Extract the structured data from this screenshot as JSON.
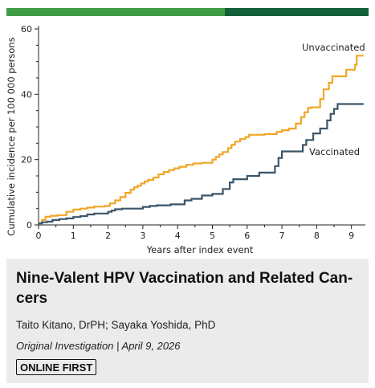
{
  "colors": {
    "bar_light_green": "#3e9c45",
    "bar_dark_green": "#12603a",
    "unvaccinated": "#f0a628",
    "vaccinated": "#3b5568",
    "card_bg": "#ebebeb"
  },
  "chart_data": {
    "type": "line",
    "subtype": "step",
    "xlabel": "Years after index event",
    "ylabel": "Cumulative incidence per 100 000 persons",
    "xlim": [
      0,
      9.4
    ],
    "ylim": [
      0,
      60
    ],
    "xticks": [
      0,
      1,
      2,
      3,
      4,
      5,
      6,
      7,
      8,
      9
    ],
    "yticks": [
      0,
      20,
      40,
      60
    ],
    "grid": false,
    "series": [
      {
        "name": "Unvaccinated",
        "color": "#f0a628",
        "x": [
          0,
          0.1,
          0.2,
          0.35,
          0.55,
          0.8,
          1.0,
          1.2,
          1.4,
          1.6,
          1.9,
          2.05,
          2.2,
          2.35,
          2.5,
          2.65,
          2.75,
          2.85,
          2.95,
          3.05,
          3.15,
          3.3,
          3.45,
          3.6,
          3.75,
          3.9,
          4.05,
          4.25,
          4.45,
          4.7,
          5.0,
          5.1,
          5.2,
          5.3,
          5.45,
          5.55,
          5.65,
          5.8,
          5.95,
          6.05,
          6.5,
          6.85,
          7.0,
          7.2,
          7.4,
          7.55,
          7.65,
          7.75,
          7.85,
          8.1,
          8.2,
          8.35,
          8.45,
          8.6,
          8.85,
          9.1,
          9.15,
          9.35
        ],
        "y": [
          0.5,
          1.5,
          2.5,
          2.8,
          3.0,
          4.0,
          4.7,
          5.0,
          5.3,
          5.6,
          5.8,
          6.6,
          7.5,
          8.5,
          9.8,
          10.8,
          11.5,
          12.0,
          12.7,
          13.3,
          13.8,
          14.5,
          15.5,
          16.2,
          16.8,
          17.3,
          17.8,
          18.4,
          18.8,
          19.0,
          20.0,
          20.8,
          21.6,
          22.3,
          23.5,
          24.5,
          25.5,
          26.3,
          26.9,
          27.6,
          27.8,
          28.5,
          29.0,
          29.5,
          31.0,
          33.0,
          34.5,
          35.8,
          36.0,
          38.5,
          41.5,
          43.5,
          45.5,
          45.5,
          47.5,
          49.0,
          51.8,
          51.8
        ]
      },
      {
        "name": "Vaccinated",
        "color": "#3b5568",
        "x": [
          0,
          0.1,
          0.25,
          0.4,
          0.6,
          0.8,
          1.0,
          1.2,
          1.4,
          1.6,
          2.0,
          2.1,
          2.2,
          2.4,
          3.0,
          3.2,
          3.4,
          3.8,
          4.2,
          4.4,
          4.7,
          5.0,
          5.3,
          5.5,
          5.6,
          6.0,
          6.35,
          6.8,
          6.9,
          7.0,
          7.6,
          7.7,
          7.9,
          8.1,
          8.3,
          8.4,
          8.5,
          8.6,
          9.35
        ],
        "y": [
          0.5,
          0.8,
          1.0,
          1.5,
          1.8,
          2.0,
          2.4,
          2.7,
          3.2,
          3.5,
          4.0,
          4.4,
          4.8,
          5.0,
          5.5,
          5.8,
          6.0,
          6.3,
          7.5,
          8.0,
          9.0,
          9.5,
          11.0,
          13.0,
          14.0,
          15.0,
          16.0,
          18.0,
          20.5,
          22.5,
          24.5,
          26.0,
          28.0,
          29.5,
          32.0,
          34.0,
          35.5,
          37.0,
          37.0
        ]
      }
    ]
  },
  "card": {
    "title": "Nine-Valent HPV Vaccination and Related Cancers",
    "title_line1": "Nine-Valent HPV Vaccination and Related Can-",
    "title_line2": "cers",
    "authors": "Taito Kitano, DrPH; Sayaka Yoshida, PhD",
    "meta": "Original Investigation | April 9, 2026",
    "badge": "ONLINE FIRST"
  }
}
